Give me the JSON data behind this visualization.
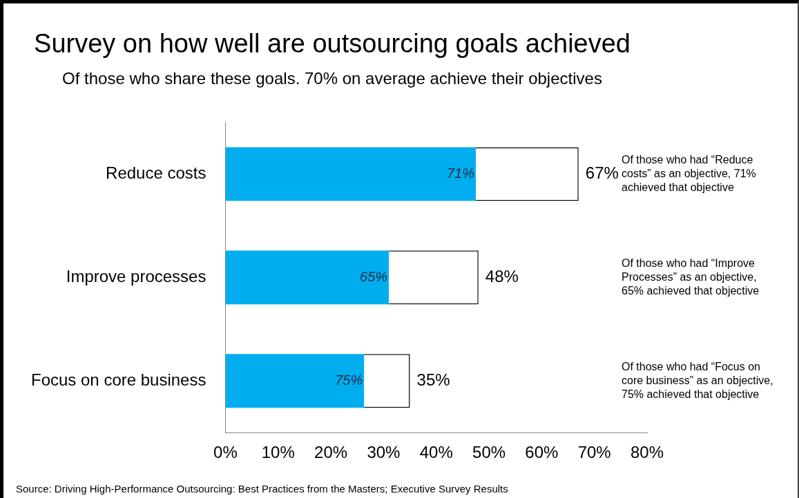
{
  "chart_data": {
    "type": "bar",
    "orientation": "horizontal",
    "stacked": true,
    "title": "Survey on how well are outsourcing goals achieved",
    "subtitle": "Of those who share these goals. 70% on average achieve their objectives",
    "categories": [
      "Reduce costs",
      "Improve processes",
      "Focus on core business"
    ],
    "series": [
      {
        "color": "#00aeef",
        "values": [
          47.5,
          31,
          26.3
        ]
      },
      {
        "color": "#ffffff",
        "values": [
          19.5,
          17,
          8.7
        ]
      }
    ],
    "totals": [
      "67%",
      "48%",
      "35%"
    ],
    "xlim": [
      0,
      80
    ],
    "xticks": [
      {
        "value": 0,
        "label": "0%"
      },
      {
        "value": 10,
        "label": "10%"
      },
      {
        "value": 20,
        "label": "20%"
      },
      {
        "value": 30,
        "label": "30%"
      },
      {
        "value": 40,
        "label": "40%"
      },
      {
        "value": 50,
        "label": "50%"
      },
      {
        "value": 60,
        "label": "60%"
      },
      {
        "value": 70,
        "label": "70%"
      },
      {
        "value": 80,
        "label": "80%"
      }
    ],
    "grid": false,
    "legend": false,
    "annotations": [
      "Of those who had “Reduce costs” as an objective, 71% achieved that objective",
      "Of those who had “Improve Processes” as an objective, 65% achieved that objective",
      "Of those who had “Focus on core business” as an objective, 75% achieved that objective",
      "71%",
      "65%",
      "75%",
      "Source: Driving High-Performance Outsourcing: Best Practices from the Masters; Executive Survey Results"
    ]
  }
}
